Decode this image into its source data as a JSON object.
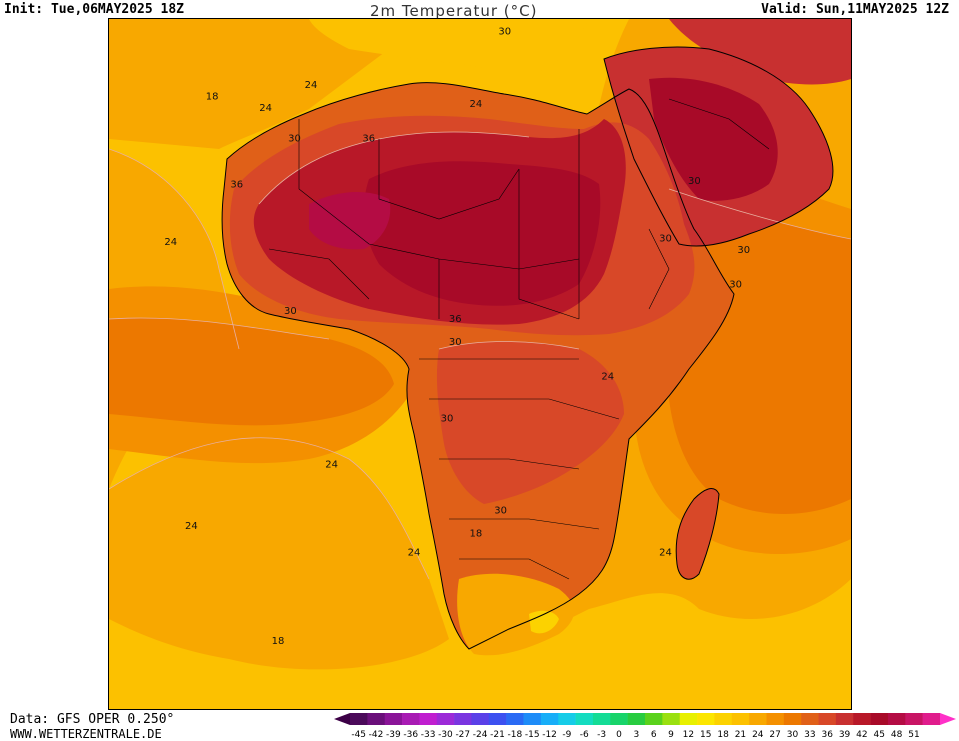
{
  "header": {
    "init": "Init: Tue,06MAY2025 18Z",
    "title": "2m Temperatur (°C)",
    "valid": "Valid: Sun,11MAY2025 12Z"
  },
  "footer": {
    "data_source": "Data: GFS OPER 0.250°",
    "website": "WWW.WETTERZENTRALE.DE"
  },
  "colorbar": {
    "ticks": [
      "-45",
      "-42",
      "-39",
      "-36",
      "-33",
      "-30",
      "-27",
      "-24",
      "-21",
      "-18",
      "-15",
      "-12",
      "-9",
      "-6",
      "-3",
      "0",
      "3",
      "6",
      "9",
      "12",
      "15",
      "18",
      "21",
      "24",
      "27",
      "30",
      "33",
      "36",
      "39",
      "42",
      "45",
      "48",
      "51"
    ],
    "colors": [
      "#4b0a5a",
      "#6a0f7a",
      "#8a1498",
      "#a81bb4",
      "#c01ed0",
      "#9c2ad8",
      "#7a35e0",
      "#5a40e8",
      "#3c50f0",
      "#2a6af4",
      "#1e8cf8",
      "#18aef8",
      "#16cce8",
      "#14dcc0",
      "#14dc96",
      "#18d46a",
      "#28cc40",
      "#5ad21c",
      "#9ae010",
      "#e8f000",
      "#fce600",
      "#fcd200",
      "#fcc100",
      "#f8a800",
      "#f49000",
      "#ec7800",
      "#e06018",
      "#d84828",
      "#c83030",
      "#b81828",
      "#a80a28",
      "#b40c44",
      "#c81464",
      "#e01c8c"
    ],
    "left_arrow_color": "#3c0046",
    "right_arrow_color": "#ff30c8"
  },
  "map": {
    "contour_labels": [
      {
        "text": "18",
        "lon": -17.5,
        "lat": 34.5
      },
      {
        "text": "24",
        "lon": -11.0,
        "lat": 33.0
      },
      {
        "text": "24",
        "lon": -5.5,
        "lat": 36.0
      },
      {
        "text": "30",
        "lon": 18.0,
        "lat": 43.0
      },
      {
        "text": "24",
        "lon": 14.5,
        "lat": 33.5
      },
      {
        "text": "30",
        "lon": -7.5,
        "lat": 29.0
      },
      {
        "text": "36",
        "lon": 1.5,
        "lat": 29.0
      },
      {
        "text": "30",
        "lon": 41.0,
        "lat": 23.5
      },
      {
        "text": "36",
        "lon": -14.5,
        "lat": 23.0
      },
      {
        "text": "24",
        "lon": -22.5,
        "lat": 15.5
      },
      {
        "text": "30",
        "lon": 37.5,
        "lat": 16.0
      },
      {
        "text": "30",
        "lon": 47.0,
        "lat": 14.5
      },
      {
        "text": "30",
        "lon": 46.0,
        "lat": 10.0
      },
      {
        "text": "30",
        "lon": -8.0,
        "lat": 6.5
      },
      {
        "text": "36",
        "lon": 12.0,
        "lat": 5.5
      },
      {
        "text": "30",
        "lon": 12.0,
        "lat": 2.5
      },
      {
        "text": "24",
        "lon": 30.5,
        "lat": -2.0
      },
      {
        "text": "30",
        "lon": 11.0,
        "lat": -7.5
      },
      {
        "text": "24",
        "lon": -3.0,
        "lat": -13.5
      },
      {
        "text": "24",
        "lon": -20.0,
        "lat": -21.5
      },
      {
        "text": "30",
        "lon": 17.5,
        "lat": -19.5
      },
      {
        "text": "18",
        "lon": 14.5,
        "lat": -22.5
      },
      {
        "text": "24",
        "lon": 7.0,
        "lat": -25.0
      },
      {
        "text": "24",
        "lon": 37.5,
        "lat": -25.0
      },
      {
        "text": "18",
        "lon": -9.5,
        "lat": -36.5
      }
    ]
  }
}
